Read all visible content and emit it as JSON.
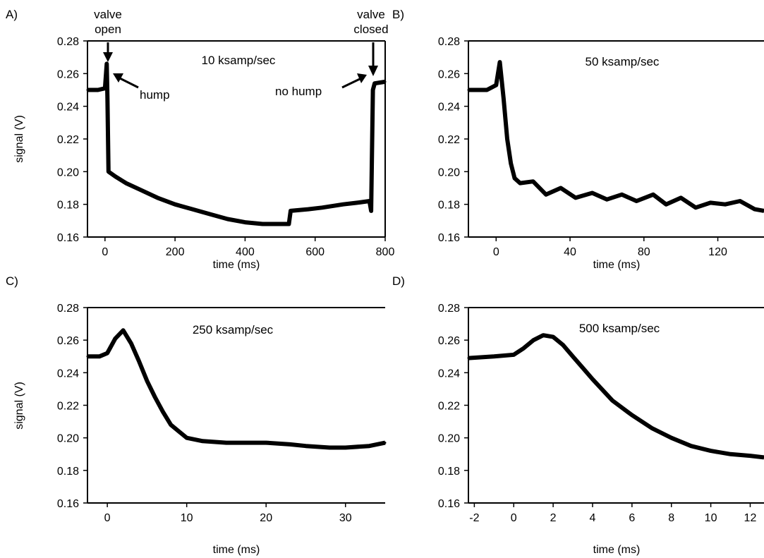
{
  "chart_data": [
    {
      "panel": "A)",
      "type": "line",
      "title": "10 ksamp/sec",
      "xlabel": "time (ms)",
      "ylabel": "signal (V)",
      "xlim": [
        -50,
        800
      ],
      "ylim": [
        0.16,
        0.28
      ],
      "xticks": [
        0,
        200,
        400,
        600,
        800
      ],
      "xticklabels": [
        "0",
        "200",
        "400",
        "600",
        "800"
      ],
      "yticks": [
        0.16,
        0.18,
        0.2,
        0.22,
        0.24,
        0.26,
        0.28
      ],
      "yticklabels": [
        "0.16",
        "0.18",
        "0.20",
        "0.22",
        "0.24",
        "0.26",
        "0.28"
      ],
      "grid": false,
      "annotations": [
        {
          "text": "valve open",
          "lines": [
            "valve",
            "open"
          ],
          "x": 5,
          "y": 0.266
        },
        {
          "text": "hump",
          "x": 10,
          "y": 0.265
        },
        {
          "text": "valve closed",
          "lines": [
            "valve",
            "closed"
          ],
          "x": 765,
          "y": 0.254
        },
        {
          "text": "no hump",
          "x": 760,
          "y": 0.255
        }
      ],
      "series": [
        {
          "x": [
            -50,
            -20,
            0,
            3,
            5,
            7,
            10,
            30,
            60,
            100,
            150,
            200,
            250,
            300,
            350,
            400,
            450,
            500,
            525,
            530,
            580,
            620,
            680,
            720,
            755,
            760,
            765,
            770,
            800
          ],
          "y": [
            0.25,
            0.25,
            0.251,
            0.26,
            0.266,
            0.245,
            0.2,
            0.197,
            0.193,
            0.189,
            0.184,
            0.18,
            0.177,
            0.174,
            0.171,
            0.169,
            0.168,
            0.168,
            0.168,
            0.176,
            0.177,
            0.178,
            0.18,
            0.181,
            0.182,
            0.176,
            0.25,
            0.254,
            0.255
          ]
        }
      ]
    },
    {
      "panel": "B)",
      "type": "line",
      "title": "50 ksamp/sec",
      "xlabel": "time (ms)",
      "ylabel": "",
      "xlim": [
        -15,
        145
      ],
      "ylim": [
        0.16,
        0.28
      ],
      "xticks": [
        0,
        40,
        80,
        120
      ],
      "xticklabels": [
        "0",
        "40",
        "80",
        "120"
      ],
      "yticks": [
        0.16,
        0.18,
        0.2,
        0.22,
        0.24,
        0.26,
        0.28
      ],
      "yticklabels": [
        "0.16",
        "0.18",
        "0.20",
        "0.22",
        "0.24",
        "0.26",
        "0.28"
      ],
      "grid": false,
      "series": [
        {
          "x": [
            -15,
            -5,
            0,
            2,
            4,
            6,
            8,
            10,
            13,
            20,
            27,
            35,
            43,
            52,
            60,
            68,
            76,
            85,
            92,
            100,
            108,
            116,
            124,
            132,
            140,
            145
          ],
          "y": [
            0.25,
            0.25,
            0.253,
            0.267,
            0.245,
            0.22,
            0.205,
            0.196,
            0.193,
            0.194,
            0.186,
            0.19,
            0.184,
            0.187,
            0.183,
            0.186,
            0.182,
            0.186,
            0.18,
            0.184,
            0.178,
            0.181,
            0.18,
            0.182,
            0.177,
            0.176
          ]
        }
      ]
    },
    {
      "panel": "C)",
      "type": "line",
      "title": "250 ksamp/sec",
      "xlabel": "time (ms)",
      "ylabel": "signal (V)",
      "xlim": [
        -2.5,
        35
      ],
      "ylim": [
        0.16,
        0.28
      ],
      "xticks": [
        0,
        10,
        20,
        30
      ],
      "xticklabels": [
        "0",
        "10",
        "20",
        "30"
      ],
      "yticks": [
        0.16,
        0.18,
        0.2,
        0.22,
        0.24,
        0.26,
        0.28
      ],
      "yticklabels": [
        "0.16",
        "0.18",
        "0.20",
        "0.22",
        "0.24",
        "0.26",
        "0.28"
      ],
      "grid": false,
      "series": [
        {
          "x": [
            -2.5,
            -1,
            0,
            1,
            2,
            3,
            4,
            5,
            6,
            7,
            8,
            9,
            10,
            12,
            15,
            20,
            23,
            25,
            28,
            30,
            33,
            35
          ],
          "y": [
            0.25,
            0.25,
            0.252,
            0.261,
            0.266,
            0.258,
            0.247,
            0.235,
            0.225,
            0.216,
            0.208,
            0.204,
            0.2,
            0.198,
            0.197,
            0.197,
            0.196,
            0.195,
            0.194,
            0.194,
            0.195,
            0.197
          ]
        }
      ]
    },
    {
      "panel": "D)",
      "type": "line",
      "title": "500 ksamp/sec",
      "xlabel": "time (ms)",
      "ylabel": "",
      "xlim": [
        -2.3,
        12.7
      ],
      "ylim": [
        0.16,
        0.28
      ],
      "xticks": [
        -2,
        0,
        2,
        4,
        6,
        8,
        10,
        12
      ],
      "xticklabels": [
        "-2",
        "0",
        "2",
        "4",
        "6",
        "8",
        "10",
        "12"
      ],
      "yticks": [
        0.16,
        0.18,
        0.2,
        0.22,
        0.24,
        0.26,
        0.28
      ],
      "yticklabels": [
        "0.16",
        "0.18",
        "0.20",
        "0.22",
        "0.24",
        "0.26",
        "0.28"
      ],
      "grid": false,
      "series": [
        {
          "x": [
            -2.3,
            -1,
            0,
            0.5,
            1,
            1.5,
            2,
            2.5,
            3,
            3.5,
            4,
            5,
            6,
            7,
            8,
            9,
            10,
            11,
            12,
            12.7
          ],
          "y": [
            0.249,
            0.25,
            0.251,
            0.255,
            0.26,
            0.263,
            0.262,
            0.257,
            0.25,
            0.243,
            0.236,
            0.223,
            0.214,
            0.206,
            0.2,
            0.195,
            0.192,
            0.19,
            0.189,
            0.188
          ]
        }
      ]
    }
  ]
}
